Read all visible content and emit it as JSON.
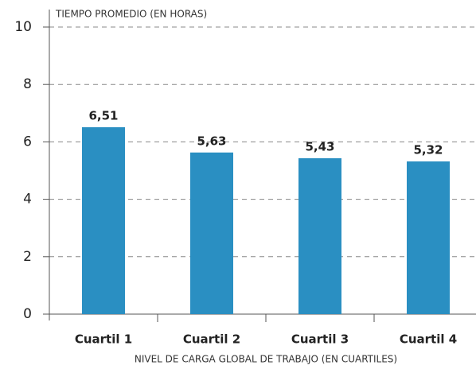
{
  "chart_data": {
    "type": "bar",
    "y_axis_title": "TIEMPO PROMEDIO (EN HORAS)",
    "x_axis_title": "NIVEL DE CARGA GLOBAL DE TRABAJO (EN CUARTILES)",
    "categories": [
      "Cuartil 1",
      "Cuartil 2",
      "Cuartil 3",
      "Cuartil 4"
    ],
    "values": [
      6.51,
      5.63,
      5.43,
      5.32
    ],
    "value_labels": [
      "6,51",
      "5,63",
      "5,43",
      "5,32"
    ],
    "color": "#2a8fc2",
    "ylim": [
      0,
      10
    ],
    "yticks": [
      0,
      2,
      4,
      6,
      8,
      10
    ],
    "grid": true
  }
}
